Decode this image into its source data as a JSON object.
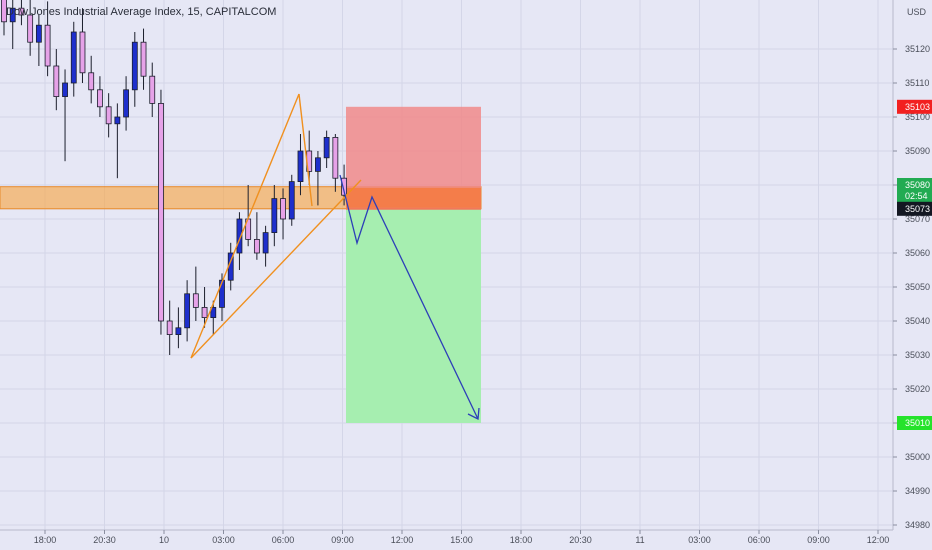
{
  "header": {
    "title": "Dow Jones Industrial Average Index, 15, CAPITALCOM",
    "currency": "USD"
  },
  "chart_data": {
    "type": "candlestick",
    "title": "Dow Jones Industrial Average Index, 15, CAPITALCOM",
    "xlabel": "",
    "ylabel": "",
    "ylim": [
      34975,
      35135
    ],
    "y_ticks": [
      35120,
      35110,
      35100,
      35090,
      35080,
      35070,
      35060,
      35050,
      35040,
      35030,
      35020,
      35010,
      35000,
      34990,
      34980
    ],
    "x_ticks": [
      "18:00",
      "20:30",
      "10",
      "03:00",
      "06:00",
      "09:00",
      "12:00",
      "15:00",
      "18:00",
      "20:30",
      "11",
      "03:00",
      "06:00",
      "09:00",
      "12:00"
    ],
    "candles": [
      [
        35136,
        35139,
        35124,
        35128
      ],
      [
        35128,
        35135,
        35120,
        35132
      ],
      [
        35132,
        35138,
        35127,
        35130
      ],
      [
        35130,
        35136,
        35118,
        35122
      ],
      [
        35122,
        35130,
        35115,
        35127
      ],
      [
        35127,
        35134,
        35112,
        35115
      ],
      [
        35115,
        35120,
        35102,
        35106
      ],
      [
        35106,
        35114,
        35087,
        35110
      ],
      [
        35110,
        35128,
        35106,
        35125
      ],
      [
        35125,
        35132,
        35110,
        35113
      ],
      [
        35113,
        35118,
        35104,
        35108
      ],
      [
        35108,
        35112,
        35100,
        35103
      ],
      [
        35103,
        35107,
        35094,
        35098
      ],
      [
        35098,
        35104,
        35082,
        35100
      ],
      [
        35100,
        35112,
        35096,
        35108
      ],
      [
        35108,
        35125,
        35103,
        35122
      ],
      [
        35122,
        35126,
        35108,
        35112
      ],
      [
        35112,
        35116,
        35100,
        35104
      ],
      [
        35104,
        35108,
        35036,
        35040
      ],
      [
        35040,
        35046,
        35030,
        35036
      ],
      [
        35036,
        35044,
        35032,
        35038
      ],
      [
        35038,
        35052,
        35034,
        35048
      ],
      [
        35048,
        35056,
        35040,
        35044
      ],
      [
        35044,
        35050,
        35038,
        35041
      ],
      [
        35041,
        35046,
        35036,
        35044
      ],
      [
        35044,
        35054,
        35040,
        35052
      ],
      [
        35052,
        35063,
        35049,
        35060
      ],
      [
        35060,
        35072,
        35055,
        35070
      ],
      [
        35070,
        35080,
        35062,
        35064
      ],
      [
        35064,
        35072,
        35058,
        35060
      ],
      [
        35060,
        35068,
        35056,
        35066
      ],
      [
        35066,
        35080,
        35062,
        35076
      ],
      [
        35076,
        35079,
        35064,
        35070
      ],
      [
        35070,
        35083,
        35068,
        35081
      ],
      [
        35081,
        35095,
        35077,
        35090
      ],
      [
        35090,
        35096,
        35080,
        35084
      ],
      [
        35084,
        35090,
        35074,
        35088
      ],
      [
        35088,
        35096,
        35085,
        35094
      ],
      [
        35094,
        35095,
        35078,
        35082
      ],
      [
        35082,
        35086,
        35074,
        35077
      ]
    ],
    "annotations": {
      "support_zone": [
        35073,
        35079.5
      ],
      "entry": 35073,
      "stop_loss": 35103,
      "take_profit": 35010,
      "current_price": 35080,
      "countdown": "02:54",
      "sl_label": "35103",
      "entry_label": "35073",
      "tp_label": "35010"
    }
  }
}
